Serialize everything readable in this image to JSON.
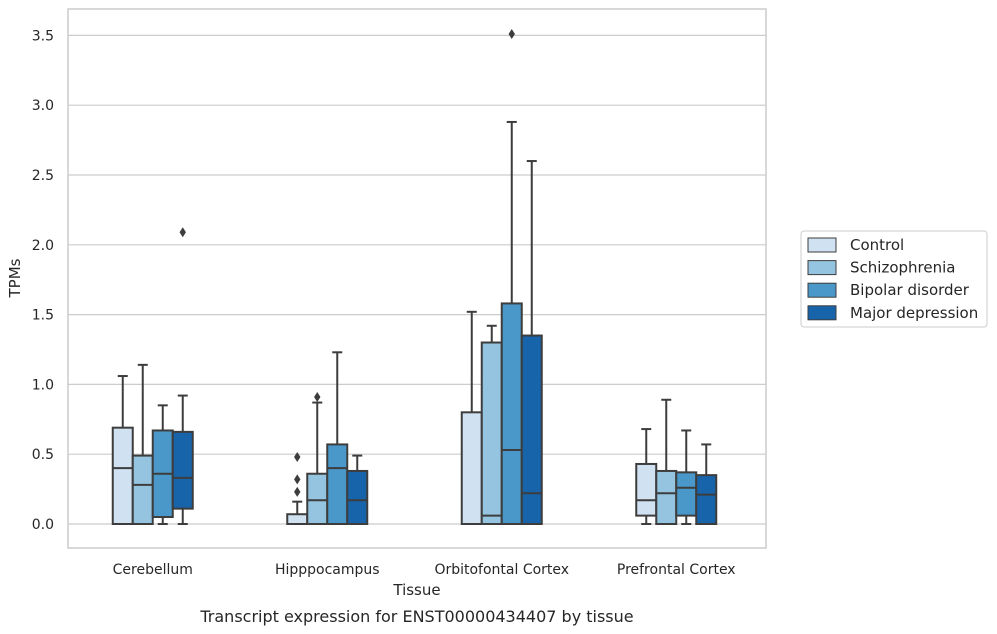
{
  "caption": "Transcript expression for ENST00000434407 by tissue",
  "chart_data": {
    "type": "box",
    "xlabel": "Tissue",
    "ylabel": "TPMs",
    "ylim": [
      -0.17,
      3.68
    ],
    "yticks": [
      0.0,
      0.5,
      1.0,
      1.5,
      2.0,
      2.5,
      3.0,
      3.5
    ],
    "ytick_labels": [
      "0.0",
      "0.5",
      "1.0",
      "1.5",
      "2.0",
      "2.5",
      "3.0",
      "3.5"
    ],
    "grid": "horizontal",
    "legend_position": "right",
    "categories": [
      "Cerebellum",
      "Hipppocampus",
      "Orbitofontal Cortex",
      "Prefrontal Cortex"
    ],
    "series": [
      {
        "name": "Control",
        "color": "#d0e1f2",
        "boxes": [
          {
            "whislo": 0.0,
            "q1": 0.0,
            "med": 0.4,
            "q3": 0.69,
            "whishi": 1.06,
            "fliers": []
          },
          {
            "whislo": 0.0,
            "q1": 0.0,
            "med": 0.0,
            "q3": 0.07,
            "whishi": 0.16,
            "fliers": [
              0.23,
              0.32,
              0.48
            ]
          },
          {
            "whislo": 0.0,
            "q1": 0.0,
            "med": 0.0,
            "q3": 0.8,
            "whishi": 1.52,
            "fliers": []
          },
          {
            "whislo": 0.0,
            "q1": 0.06,
            "med": 0.17,
            "q3": 0.43,
            "whishi": 0.68,
            "fliers": []
          }
        ]
      },
      {
        "name": "Schizophrenia",
        "color": "#94c4df",
        "boxes": [
          {
            "whislo": 0.0,
            "q1": 0.0,
            "med": 0.28,
            "q3": 0.49,
            "whishi": 1.14,
            "fliers": []
          },
          {
            "whislo": 0.0,
            "q1": 0.0,
            "med": 0.17,
            "q3": 0.36,
            "whishi": 0.87,
            "fliers": [
              0.91
            ]
          },
          {
            "whislo": 0.0,
            "q1": 0.0,
            "med": 0.06,
            "q3": 1.3,
            "whishi": 1.42,
            "fliers": []
          },
          {
            "whislo": 0.0,
            "q1": 0.0,
            "med": 0.22,
            "q3": 0.38,
            "whishi": 0.89,
            "fliers": []
          }
        ]
      },
      {
        "name": "Bipolar disorder",
        "color": "#4a98c9",
        "boxes": [
          {
            "whislo": 0.0,
            "q1": 0.05,
            "med": 0.36,
            "q3": 0.67,
            "whishi": 0.85,
            "fliers": []
          },
          {
            "whislo": 0.0,
            "q1": 0.0,
            "med": 0.4,
            "q3": 0.57,
            "whishi": 1.23,
            "fliers": []
          },
          {
            "whislo": 0.0,
            "q1": 0.0,
            "med": 0.53,
            "q3": 1.58,
            "whishi": 2.88,
            "fliers": [
              3.51
            ]
          },
          {
            "whislo": 0.0,
            "q1": 0.06,
            "med": 0.26,
            "q3": 0.37,
            "whishi": 0.67,
            "fliers": []
          }
        ]
      },
      {
        "name": "Major depression",
        "color": "#1764ab",
        "boxes": [
          {
            "whislo": 0.0,
            "q1": 0.11,
            "med": 0.33,
            "q3": 0.66,
            "whishi": 0.92,
            "fliers": [
              2.09
            ]
          },
          {
            "whislo": 0.0,
            "q1": 0.0,
            "med": 0.17,
            "q3": 0.38,
            "whishi": 0.49,
            "fliers": []
          },
          {
            "whislo": 0.0,
            "q1": 0.0,
            "med": 0.22,
            "q3": 1.35,
            "whishi": 2.6,
            "fliers": []
          },
          {
            "whislo": 0.0,
            "q1": 0.0,
            "med": 0.21,
            "q3": 0.35,
            "whishi": 0.57,
            "fliers": []
          }
        ]
      }
    ]
  }
}
